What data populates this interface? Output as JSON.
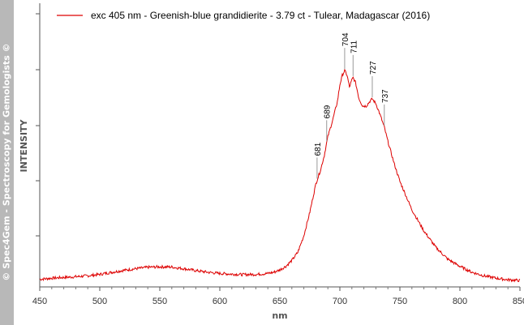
{
  "watermark": "© Spec4Gem - Spectroscopy for Gemologists ©",
  "chart_data": {
    "type": "line",
    "xlabel": "nm",
    "ylabel": "INTENSITY",
    "xlim": [
      450,
      850
    ],
    "ylim": [
      0,
      1
    ],
    "xticks": [
      450,
      500,
      550,
      600,
      650,
      700,
      750,
      800,
      850
    ],
    "grid": false,
    "legend_position": "top-left",
    "series": [
      {
        "name": "exc 405 nm - Greenish-blue grandidierite - 3.79 ct - Tulear, Madagascar (2016)",
        "color": "#dd0000",
        "x": [
          450,
          460,
          470,
          480,
          490,
          500,
          510,
          520,
          530,
          540,
          550,
          560,
          570,
          580,
          590,
          600,
          610,
          620,
          630,
          640,
          645,
          650,
          655,
          660,
          665,
          670,
          675,
          680,
          684,
          687,
          690,
          694,
          698,
          700,
          702,
          704,
          706,
          708,
          710,
          711,
          713,
          716,
          719,
          722,
          725,
          727,
          730,
          733,
          737,
          740,
          745,
          750,
          760,
          770,
          780,
          790,
          800,
          810,
          820,
          830,
          840,
          850
        ],
        "y": [
          0.015,
          0.02,
          0.023,
          0.026,
          0.03,
          0.036,
          0.045,
          0.053,
          0.06,
          0.066,
          0.068,
          0.067,
          0.06,
          0.052,
          0.045,
          0.04,
          0.037,
          0.035,
          0.036,
          0.04,
          0.045,
          0.055,
          0.07,
          0.095,
          0.13,
          0.2,
          0.3,
          0.42,
          0.48,
          0.54,
          0.62,
          0.69,
          0.77,
          0.84,
          0.88,
          0.9,
          0.88,
          0.83,
          0.86,
          0.87,
          0.85,
          0.78,
          0.75,
          0.75,
          0.77,
          0.78,
          0.76,
          0.72,
          0.66,
          0.6,
          0.51,
          0.43,
          0.31,
          0.22,
          0.15,
          0.1,
          0.07,
          0.045,
          0.03,
          0.02,
          0.013,
          0.01
        ]
      }
    ],
    "annotations": [
      {
        "text": "681",
        "x": 681
      },
      {
        "text": "689",
        "x": 689
      },
      {
        "text": "704",
        "x": 704
      },
      {
        "text": "711",
        "x": 711
      },
      {
        "text": "727",
        "x": 727
      },
      {
        "text": "737",
        "x": 737
      }
    ]
  }
}
